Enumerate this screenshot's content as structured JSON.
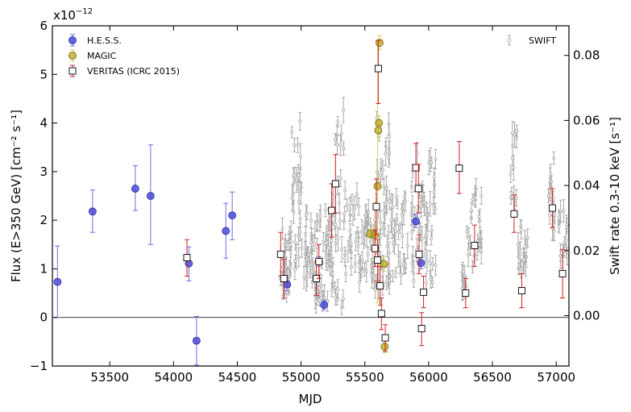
{
  "chart_data": {
    "type": "scatter",
    "xlabel": "MJD",
    "ylabel_left": "Flux (E>350 GeV) [cm⁻² s⁻¹]",
    "ylabel_right": "Swift rate 0.3-10 keV [s⁻¹]",
    "left_multiplier": "x10",
    "left_multiplier_exp": "−12",
    "xlim": [
      53050,
      57100
    ],
    "ylim_left": [
      -1,
      6
    ],
    "ylim_right": [
      -0.0155,
      0.0891
    ],
    "x_ticks": [
      53500,
      54000,
      54500,
      55000,
      55500,
      56000,
      56500,
      57000
    ],
    "y_ticks_left": [
      -1,
      0,
      1,
      2,
      3,
      4,
      5,
      6
    ],
    "y_ticks_right": [
      0.0,
      0.02,
      0.04,
      0.06,
      0.08
    ],
    "y_tick_labels_left": [
      "−1",
      "0",
      "1",
      "2",
      "3",
      "4",
      "5",
      "6"
    ],
    "y_tick_labels_right": [
      "0.00",
      "0.02",
      "0.04",
      "0.06",
      "0.08"
    ],
    "legend_left": [
      "H.E.S.S.",
      "MAGIC",
      "VERITAS (ICRC 2015)"
    ],
    "legend_right": [
      "SWIFT"
    ],
    "legend_left_placement": "top-left",
    "legend_right_placement": "top-right",
    "zero_line": 0,
    "colors": {
      "hess": "#4b4bdc",
      "hess_err": "#6b6bea",
      "magic": "#c2b12c",
      "magic_err": "#d7d06a",
      "veritas_err": "#d42020",
      "swift": "#a8a8a8"
    },
    "series": [
      {
        "name": "H.E.S.S.",
        "points": [
          {
            "x": 53090,
            "y": 0.73,
            "lo": 0.0,
            "hi": 1.47
          },
          {
            "x": 53365,
            "y": 2.18,
            "lo": 1.75,
            "hi": 2.62
          },
          {
            "x": 53700,
            "y": 2.65,
            "lo": 2.2,
            "hi": 3.12
          },
          {
            "x": 53820,
            "y": 2.5,
            "lo": 1.5,
            "hi": 3.55
          },
          {
            "x": 54120,
            "y": 1.11,
            "lo": 0.75,
            "hi": 1.45
          },
          {
            "x": 54180,
            "y": -0.48,
            "lo": -0.98,
            "hi": 0.02
          },
          {
            "x": 54410,
            "y": 1.78,
            "lo": 1.22,
            "hi": 2.35
          },
          {
            "x": 54460,
            "y": 2.1,
            "lo": 1.6,
            "hi": 2.58
          },
          {
            "x": 54890,
            "y": 0.68,
            "lo": 0.55,
            "hi": 0.82
          },
          {
            "x": 55140,
            "y": 1.15,
            "lo": 1.05,
            "hi": 1.25
          },
          {
            "x": 55180,
            "y": 0.26,
            "lo": 0.16,
            "hi": 0.36
          },
          {
            "x": 55900,
            "y": 1.98,
            "lo": 1.85,
            "hi": 2.12
          },
          {
            "x": 55940,
            "y": 1.12,
            "lo": 1.0,
            "hi": 1.24
          }
        ]
      },
      {
        "name": "MAGIC",
        "points": [
          {
            "x": 55540,
            "y": 1.72,
            "lo": 1.62,
            "hi": 1.82
          },
          {
            "x": 55580,
            "y": 1.7,
            "lo": 1.55,
            "hi": 1.85
          },
          {
            "x": 55600,
            "y": 2.7,
            "lo": 0.3,
            "hi": 5.7
          },
          {
            "x": 55605,
            "y": 3.85,
            "lo": 3.7,
            "hi": 4.0
          },
          {
            "x": 55610,
            "y": 4.0,
            "lo": 3.85,
            "hi": 4.15
          },
          {
            "x": 55615,
            "y": 5.65,
            "lo": 5.5,
            "hi": 5.8
          },
          {
            "x": 55650,
            "y": 1.1,
            "lo": 0.95,
            "hi": 1.25
          },
          {
            "x": 55655,
            "y": -0.6,
            "lo": -0.72,
            "hi": -0.48
          }
        ]
      },
      {
        "name": "VERITAS (ICRC 2015)",
        "points": [
          {
            "x": 54105,
            "y": 1.23,
            "lo": 0.85,
            "hi": 1.6
          },
          {
            "x": 54840,
            "y": 1.3,
            "lo": 0.85,
            "hi": 1.75
          },
          {
            "x": 54865,
            "y": 0.8,
            "lo": 0.4,
            "hi": 1.2
          },
          {
            "x": 55120,
            "y": 0.8,
            "lo": 0.45,
            "hi": 1.15
          },
          {
            "x": 55140,
            "y": 1.15,
            "lo": 0.8,
            "hi": 1.5
          },
          {
            "x": 55240,
            "y": 2.2,
            "lo": 1.65,
            "hi": 2.75
          },
          {
            "x": 55270,
            "y": 2.75,
            "lo": 2.15,
            "hi": 3.35
          },
          {
            "x": 55580,
            "y": 1.42,
            "lo": 1.05,
            "hi": 1.8
          },
          {
            "x": 55590,
            "y": 2.28,
            "lo": 1.7,
            "hi": 2.85
          },
          {
            "x": 55600,
            "y": 1.18,
            "lo": 0.75,
            "hi": 1.6
          },
          {
            "x": 55605,
            "y": 5.12,
            "lo": 4.4,
            "hi": 5.7
          },
          {
            "x": 55620,
            "y": 0.65,
            "lo": 0.25,
            "hi": 1.05
          },
          {
            "x": 55630,
            "y": 0.08,
            "lo": -0.25,
            "hi": 0.4
          },
          {
            "x": 55660,
            "y": -0.42,
            "lo": -0.7,
            "hi": -0.15
          },
          {
            "x": 55900,
            "y": 3.08,
            "lo": 2.6,
            "hi": 3.58
          },
          {
            "x": 55920,
            "y": 2.65,
            "lo": 2.15,
            "hi": 3.15
          },
          {
            "x": 55925,
            "y": 1.3,
            "lo": 0.9,
            "hi": 1.7
          },
          {
            "x": 55945,
            "y": -0.23,
            "lo": -0.58,
            "hi": 0.1
          },
          {
            "x": 55960,
            "y": 0.52,
            "lo": 0.2,
            "hi": 0.85
          },
          {
            "x": 56240,
            "y": 3.07,
            "lo": 2.55,
            "hi": 3.62
          },
          {
            "x": 56290,
            "y": 0.5,
            "lo": 0.2,
            "hi": 0.8
          },
          {
            "x": 56360,
            "y": 1.48,
            "lo": 1.05,
            "hi": 1.9
          },
          {
            "x": 56670,
            "y": 2.13,
            "lo": 1.75,
            "hi": 2.52
          },
          {
            "x": 56730,
            "y": 0.55,
            "lo": 0.2,
            "hi": 0.9
          },
          {
            "x": 56970,
            "y": 2.25,
            "lo": 1.85,
            "hi": 2.65
          },
          {
            "x": 57050,
            "y": 0.9,
            "lo": 0.4,
            "hi": 1.4
          }
        ]
      },
      {
        "name": "SWIFT",
        "axis": "right",
        "clusters": [
          {
            "x0": 54840,
            "x1": 54920,
            "ymin": 0.006,
            "ymax": 0.03,
            "n": 26
          },
          {
            "x0": 54920,
            "x1": 55010,
            "ymin": 0.014,
            "ymax": 0.06,
            "n": 28
          },
          {
            "x0": 55010,
            "x1": 55110,
            "ymin": 0.01,
            "ymax": 0.032,
            "n": 24
          },
          {
            "x0": 55110,
            "x1": 55240,
            "ymin": 0.004,
            "ymax": 0.036,
            "n": 40
          },
          {
            "x0": 55240,
            "x1": 55340,
            "ymin": 0.002,
            "ymax": 0.066,
            "n": 30
          },
          {
            "x0": 55340,
            "x1": 55480,
            "ymin": 0.01,
            "ymax": 0.04,
            "n": 30
          },
          {
            "x0": 55480,
            "x1": 55580,
            "ymin": 0.012,
            "ymax": 0.032,
            "n": 26
          },
          {
            "x0": 55580,
            "x1": 55700,
            "ymin": 0.008,
            "ymax": 0.066,
            "n": 44
          },
          {
            "x0": 55700,
            "x1": 55860,
            "ymin": 0.012,
            "ymax": 0.04,
            "n": 30
          },
          {
            "x0": 55860,
            "x1": 56060,
            "ymin": 0.01,
            "ymax": 0.05,
            "n": 52
          },
          {
            "x0": 56260,
            "x1": 56300,
            "ymin": 0.006,
            "ymax": 0.014,
            "n": 10
          },
          {
            "x0": 56300,
            "x1": 56420,
            "ymin": 0.014,
            "ymax": 0.04,
            "n": 24
          },
          {
            "x0": 56640,
            "x1": 56700,
            "ymin": 0.024,
            "ymax": 0.06,
            "n": 12
          },
          {
            "x0": 56700,
            "x1": 56780,
            "ymin": 0.014,
            "ymax": 0.028,
            "n": 16
          },
          {
            "x0": 56940,
            "x1": 56990,
            "ymin": 0.026,
            "ymax": 0.05,
            "n": 14
          },
          {
            "x0": 57020,
            "x1": 57090,
            "ymin": 0.018,
            "ymax": 0.034,
            "n": 16
          }
        ]
      }
    ]
  }
}
